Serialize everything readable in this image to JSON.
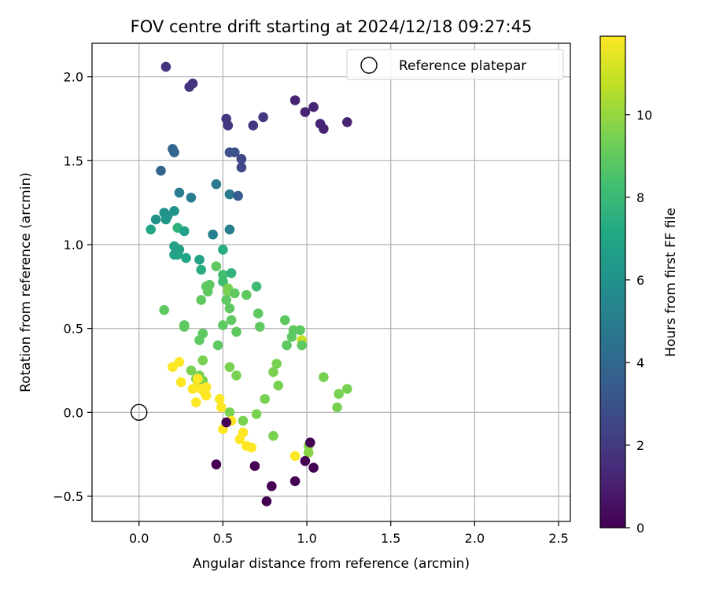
{
  "chart_data": {
    "type": "scatter",
    "title": "FOV centre drift starting at 2024/12/18 09:27:45",
    "xlabel": "Angular distance from reference (arcmin)",
    "ylabel": "Rotation from reference (arcmin)",
    "colorbar_label": "Hours from first FF file",
    "xlim": [
      -0.28,
      2.57
    ],
    "ylim": [
      -0.65,
      2.2
    ],
    "xticks": [
      0.0,
      0.5,
      1.0,
      1.5,
      2.0,
      2.5
    ],
    "xtick_labels": [
      "0.0",
      "0.5",
      "1.0",
      "1.5",
      "2.0",
      "2.5"
    ],
    "yticks": [
      -0.5,
      0.0,
      0.5,
      1.0,
      1.5,
      2.0
    ],
    "ytick_labels": [
      "−0.5",
      "0.0",
      "0.5",
      "1.0",
      "1.5",
      "2.0"
    ],
    "colorbar_range": [
      0,
      11.9
    ],
    "colorbar_ticks": [
      0,
      2,
      4,
      6,
      8,
      10
    ],
    "colorbar_tick_labels": [
      "0",
      "2",
      "4",
      "6",
      "8",
      "10"
    ],
    "colormap": "viridis",
    "grid": true,
    "legend_position": "upper right",
    "reference": {
      "label": "Reference platepar",
      "x": 0.0,
      "y": 0.0
    },
    "points": [
      [
        0.16,
        2.06,
        1.8
      ],
      [
        0.3,
        1.94,
        1.8
      ],
      [
        0.32,
        1.96,
        1.8
      ],
      [
        0.93,
        1.86,
        1.2
      ],
      [
        1.04,
        1.82,
        1.2
      ],
      [
        0.99,
        1.79,
        1.2
      ],
      [
        1.08,
        1.72,
        1.2
      ],
      [
        1.1,
        1.69,
        1.2
      ],
      [
        1.24,
        1.73,
        1.2
      ],
      [
        0.74,
        1.76,
        1.9
      ],
      [
        0.68,
        1.71,
        1.9
      ],
      [
        0.52,
        1.75,
        1.9
      ],
      [
        0.53,
        1.71,
        1.9
      ],
      [
        0.61,
        1.51,
        2.5
      ],
      [
        0.61,
        1.46,
        2.5
      ],
      [
        0.54,
        1.55,
        3.0
      ],
      [
        0.57,
        1.55,
        3.0
      ],
      [
        0.2,
        1.57,
        3.8
      ],
      [
        0.21,
        1.55,
        3.8
      ],
      [
        0.13,
        1.44,
        3.8
      ],
      [
        0.46,
        1.36,
        4.8
      ],
      [
        0.54,
        1.3,
        4.8
      ],
      [
        0.59,
        1.29,
        3.5
      ],
      [
        0.24,
        1.31,
        5.0
      ],
      [
        0.31,
        1.28,
        5.0
      ],
      [
        0.44,
        1.06,
        5.1
      ],
      [
        0.54,
        1.09,
        5.1
      ],
      [
        0.1,
        1.15,
        6.0
      ],
      [
        0.15,
        1.19,
        6.0
      ],
      [
        0.17,
        1.17,
        6.0
      ],
      [
        0.21,
        1.2,
        6.0
      ],
      [
        0.16,
        1.15,
        6.2
      ],
      [
        0.07,
        1.09,
        7.0
      ],
      [
        0.23,
        1.1,
        7.6
      ],
      [
        0.27,
        1.08,
        6.8
      ],
      [
        0.21,
        0.99,
        6.8
      ],
      [
        0.24,
        0.97,
        6.8
      ],
      [
        0.21,
        0.94,
        6.8
      ],
      [
        0.23,
        0.94,
        6.8
      ],
      [
        0.28,
        0.92,
        7.0
      ],
      [
        0.36,
        0.91,
        6.8
      ],
      [
        0.5,
        0.97,
        7.4
      ],
      [
        0.37,
        0.85,
        7.4
      ],
      [
        0.5,
        0.82,
        8.3
      ],
      [
        0.55,
        0.83,
        7.7
      ],
      [
        0.5,
        0.78,
        8.2
      ],
      [
        0.7,
        0.75,
        8.2
      ],
      [
        0.46,
        0.87,
        8.9
      ],
      [
        0.42,
        0.76,
        8.9
      ],
      [
        0.4,
        0.75,
        8.9
      ],
      [
        0.41,
        0.72,
        8.9
      ],
      [
        0.37,
        0.67,
        8.9
      ],
      [
        0.53,
        0.74,
        9.5
      ],
      [
        0.53,
        0.72,
        9.5
      ],
      [
        0.57,
        0.71,
        8.9
      ],
      [
        0.64,
        0.7,
        8.9
      ],
      [
        0.52,
        0.67,
        8.9
      ],
      [
        0.54,
        0.62,
        8.9
      ],
      [
        0.15,
        0.61,
        8.9
      ],
      [
        0.71,
        0.59,
        8.9
      ],
      [
        0.55,
        0.55,
        8.9
      ],
      [
        0.87,
        0.55,
        8.9
      ],
      [
        0.5,
        0.52,
        8.9
      ],
      [
        0.27,
        0.52,
        8.9
      ],
      [
        0.27,
        0.51,
        8.9
      ],
      [
        0.72,
        0.51,
        8.9
      ],
      [
        0.58,
        0.48,
        8.9
      ],
      [
        0.92,
        0.49,
        8.9
      ],
      [
        0.96,
        0.49,
        8.9
      ],
      [
        0.91,
        0.45,
        8.9
      ],
      [
        0.38,
        0.47,
        8.9
      ],
      [
        0.36,
        0.43,
        8.9
      ],
      [
        0.97,
        0.43,
        10.9
      ],
      [
        0.88,
        0.4,
        8.9
      ],
      [
        0.97,
        0.4,
        8.9
      ],
      [
        0.47,
        0.4,
        8.9
      ],
      [
        0.38,
        0.31,
        9.5
      ],
      [
        0.82,
        0.29,
        9.5
      ],
      [
        0.54,
        0.27,
        9.5
      ],
      [
        0.31,
        0.25,
        9.5
      ],
      [
        0.8,
        0.24,
        9.5
      ],
      [
        0.58,
        0.22,
        9.5
      ],
      [
        0.36,
        0.22,
        9.5
      ],
      [
        1.1,
        0.21,
        9.5
      ],
      [
        0.34,
        0.2,
        9.5
      ],
      [
        0.35,
        0.18,
        11.5
      ],
      [
        0.38,
        0.19,
        9.5
      ],
      [
        0.83,
        0.16,
        9.5
      ],
      [
        1.24,
        0.14,
        9.5
      ],
      [
        1.19,
        0.11,
        9.5
      ],
      [
        0.75,
        0.08,
        9.5
      ],
      [
        1.18,
        0.03,
        9.5
      ],
      [
        0.54,
        0.0,
        9.5
      ],
      [
        0.7,
        -0.01,
        9.5
      ],
      [
        0.62,
        -0.05,
        9.5
      ],
      [
        0.8,
        -0.14,
        9.5
      ],
      [
        1.01,
        -0.2,
        9.8
      ],
      [
        1.01,
        -0.24,
        9.8
      ],
      [
        0.2,
        0.27,
        11.9
      ],
      [
        0.24,
        0.3,
        11.9
      ],
      [
        0.25,
        0.18,
        11.9
      ],
      [
        0.32,
        0.14,
        11.9
      ],
      [
        0.37,
        0.14,
        11.9
      ],
      [
        0.4,
        0.15,
        11.9
      ],
      [
        0.39,
        0.12,
        11.9
      ],
      [
        0.4,
        0.1,
        11.9
      ],
      [
        0.35,
        0.2,
        11.9
      ],
      [
        0.34,
        0.06,
        11.9
      ],
      [
        0.48,
        0.08,
        11.9
      ],
      [
        0.49,
        0.03,
        11.9
      ],
      [
        0.5,
        -0.1,
        11.9
      ],
      [
        0.55,
        -0.05,
        11.9
      ],
      [
        0.62,
        -0.12,
        11.9
      ],
      [
        0.6,
        -0.16,
        11.9
      ],
      [
        0.64,
        -0.2,
        11.9
      ],
      [
        0.67,
        -0.21,
        11.9
      ],
      [
        0.93,
        -0.26,
        11.9
      ],
      [
        0.52,
        -0.06,
        0.0
      ],
      [
        0.46,
        -0.31,
        0.0
      ],
      [
        0.69,
        -0.32,
        0.0
      ],
      [
        0.79,
        -0.44,
        0.0
      ],
      [
        0.76,
        -0.53,
        0.0
      ],
      [
        0.93,
        -0.41,
        0.0
      ],
      [
        0.99,
        -0.29,
        0.0
      ],
      [
        1.02,
        -0.18,
        0.0
      ],
      [
        1.04,
        -0.33,
        0.0
      ]
    ]
  }
}
